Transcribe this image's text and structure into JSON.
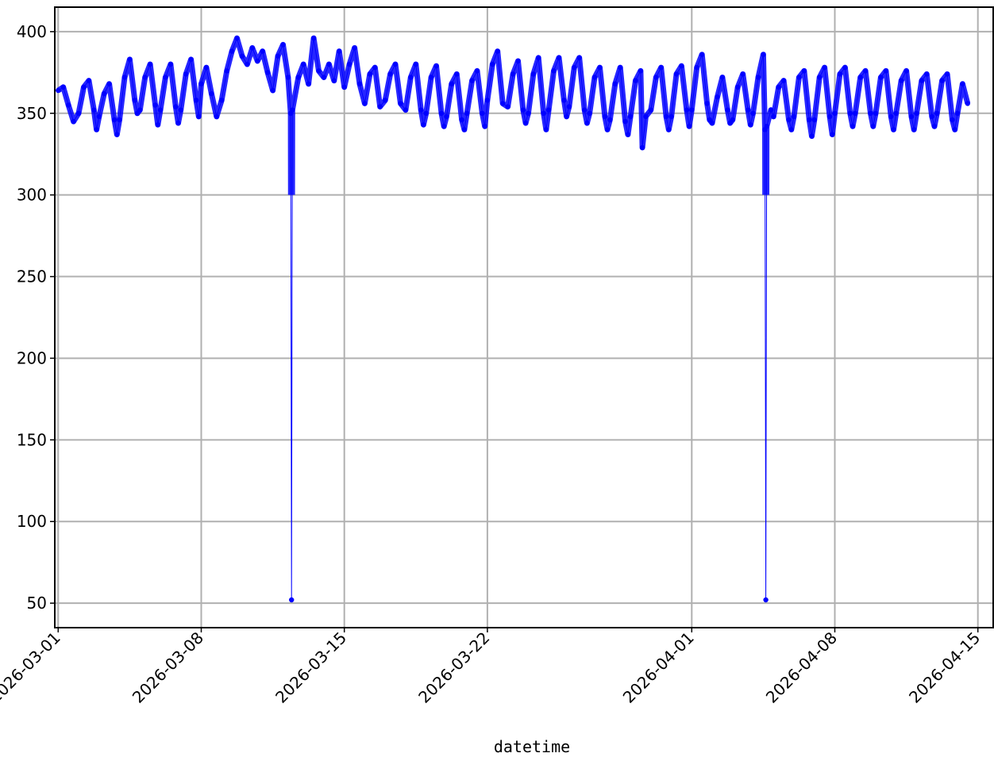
{
  "chart_data": {
    "type": "line",
    "title": "",
    "xlabel": "datetime",
    "ylabel": "",
    "x_type": "date",
    "xlim": [
      "2026-02-28T20:00",
      "2026-04-15T18:00"
    ],
    "ylim": [
      35,
      415
    ],
    "grid": true,
    "legend": "none",
    "x_ticks": [
      "2026-03-01",
      "2026-03-08",
      "2026-03-15",
      "2026-03-22",
      "2026-04-01",
      "2026-04-08",
      "2026-04-15"
    ],
    "y_ticks": [
      50,
      100,
      150,
      200,
      250,
      300,
      350,
      400
    ],
    "series": [
      {
        "color": "#0000ff",
        "marker": "dot",
        "points": [
          [
            "2026-03-01T00:00",
            364
          ],
          [
            "2026-03-01T06:00",
            366
          ],
          [
            "2026-03-01T12:00",
            355
          ],
          [
            "2026-03-01T18:00",
            345
          ],
          [
            "2026-03-02T00:00",
            350
          ],
          [
            "2026-03-02T06:00",
            366
          ],
          [
            "2026-03-02T12:00",
            370
          ],
          [
            "2026-03-02T18:00",
            352
          ],
          [
            "2026-03-02T21:00",
            340
          ],
          [
            "2026-03-03T00:00",
            348
          ],
          [
            "2026-03-03T06:00",
            362
          ],
          [
            "2026-03-03T12:00",
            368
          ],
          [
            "2026-03-03T18:00",
            346
          ],
          [
            "2026-03-03T21:00",
            337
          ],
          [
            "2026-03-04T00:00",
            346
          ],
          [
            "2026-03-04T06:00",
            372
          ],
          [
            "2026-03-04T12:00",
            383
          ],
          [
            "2026-03-04T18:00",
            358
          ],
          [
            "2026-03-04T21:00",
            350
          ],
          [
            "2026-03-05T00:00",
            352
          ],
          [
            "2026-03-05T06:00",
            372
          ],
          [
            "2026-03-05T12:00",
            380
          ],
          [
            "2026-03-05T18:00",
            355
          ],
          [
            "2026-03-05T21:00",
            343
          ],
          [
            "2026-03-06T00:00",
            352
          ],
          [
            "2026-03-06T06:00",
            372
          ],
          [
            "2026-03-06T12:00",
            380
          ],
          [
            "2026-03-06T18:00",
            354
          ],
          [
            "2026-03-06T21:00",
            344
          ],
          [
            "2026-03-07T00:00",
            352
          ],
          [
            "2026-03-07T06:00",
            374
          ],
          [
            "2026-03-07T12:00",
            383
          ],
          [
            "2026-03-07T18:00",
            358
          ],
          [
            "2026-03-07T21:00",
            348
          ],
          [
            "2026-03-08T00:00",
            368
          ],
          [
            "2026-03-08T06:00",
            378
          ],
          [
            "2026-03-08T12:00",
            362
          ],
          [
            "2026-03-08T18:00",
            348
          ],
          [
            "2026-03-09T00:00",
            358
          ],
          [
            "2026-03-09T06:00",
            376
          ],
          [
            "2026-03-09T12:00",
            388
          ],
          [
            "2026-03-09T18:00",
            396
          ],
          [
            "2026-03-10T00:00",
            385
          ],
          [
            "2026-03-10T06:00",
            380
          ],
          [
            "2026-03-10T12:00",
            390
          ],
          [
            "2026-03-10T18:00",
            382
          ],
          [
            "2026-03-11T00:00",
            388
          ],
          [
            "2026-03-11T06:00",
            375
          ],
          [
            "2026-03-11T12:00",
            364
          ],
          [
            "2026-03-11T18:00",
            385
          ],
          [
            "2026-03-12T00:00",
            392
          ],
          [
            "2026-03-12T06:00",
            372
          ],
          [
            "2026-03-12T09:00",
            350
          ],
          [
            "2026-03-12T10:00",
            52
          ],
          [
            "2026-03-12T11:00",
            352
          ],
          [
            "2026-03-12T18:00",
            372
          ],
          [
            "2026-03-13T00:00",
            380
          ],
          [
            "2026-03-13T06:00",
            368
          ],
          [
            "2026-03-13T12:00",
            396
          ],
          [
            "2026-03-13T18:00",
            376
          ],
          [
            "2026-03-14T00:00",
            372
          ],
          [
            "2026-03-14T06:00",
            380
          ],
          [
            "2026-03-14T12:00",
            370
          ],
          [
            "2026-03-14T18:00",
            388
          ],
          [
            "2026-03-15T00:00",
            366
          ],
          [
            "2026-03-15T06:00",
            380
          ],
          [
            "2026-03-15T12:00",
            390
          ],
          [
            "2026-03-15T18:00",
            368
          ],
          [
            "2026-03-16T00:00",
            356
          ],
          [
            "2026-03-16T06:00",
            374
          ],
          [
            "2026-03-16T12:00",
            378
          ],
          [
            "2026-03-16T18:00",
            354
          ],
          [
            "2026-03-17T00:00",
            358
          ],
          [
            "2026-03-17T06:00",
            374
          ],
          [
            "2026-03-17T12:00",
            380
          ],
          [
            "2026-03-17T18:00",
            356
          ],
          [
            "2026-03-18T00:00",
            352
          ],
          [
            "2026-03-18T06:00",
            372
          ],
          [
            "2026-03-18T12:00",
            380
          ],
          [
            "2026-03-18T18:00",
            352
          ],
          [
            "2026-03-18T21:00",
            343
          ],
          [
            "2026-03-19T00:00",
            350
          ],
          [
            "2026-03-19T06:00",
            372
          ],
          [
            "2026-03-19T12:00",
            379
          ],
          [
            "2026-03-19T18:00",
            350
          ],
          [
            "2026-03-19T21:00",
            342
          ],
          [
            "2026-03-20T00:00",
            348
          ],
          [
            "2026-03-20T06:00",
            368
          ],
          [
            "2026-03-20T12:00",
            374
          ],
          [
            "2026-03-20T18:00",
            346
          ],
          [
            "2026-03-20T21:00",
            340
          ],
          [
            "2026-03-21T00:00",
            350
          ],
          [
            "2026-03-21T06:00",
            370
          ],
          [
            "2026-03-21T12:00",
            376
          ],
          [
            "2026-03-21T18:00",
            350
          ],
          [
            "2026-03-21T21:00",
            342
          ],
          [
            "2026-03-22T00:00",
            358
          ],
          [
            "2026-03-22T06:00",
            380
          ],
          [
            "2026-03-22T12:00",
            388
          ],
          [
            "2026-03-22T18:00",
            356
          ],
          [
            "2026-03-23T00:00",
            354
          ],
          [
            "2026-03-23T06:00",
            374
          ],
          [
            "2026-03-23T12:00",
            382
          ],
          [
            "2026-03-23T18:00",
            352
          ],
          [
            "2026-03-23T21:00",
            344
          ],
          [
            "2026-03-24T00:00",
            350
          ],
          [
            "2026-03-24T06:00",
            374
          ],
          [
            "2026-03-24T12:00",
            384
          ],
          [
            "2026-03-24T18:00",
            350
          ],
          [
            "2026-03-24T21:00",
            340
          ],
          [
            "2026-03-25T00:00",
            352
          ],
          [
            "2026-03-25T06:00",
            376
          ],
          [
            "2026-03-25T12:00",
            384
          ],
          [
            "2026-03-25T18:00",
            358
          ],
          [
            "2026-03-25T21:00",
            348
          ],
          [
            "2026-03-26T00:00",
            354
          ],
          [
            "2026-03-26T06:00",
            378
          ],
          [
            "2026-03-26T12:00",
            384
          ],
          [
            "2026-03-26T18:00",
            352
          ],
          [
            "2026-03-26T21:00",
            344
          ],
          [
            "2026-03-27T00:00",
            350
          ],
          [
            "2026-03-27T06:00",
            372
          ],
          [
            "2026-03-27T12:00",
            378
          ],
          [
            "2026-03-27T18:00",
            348
          ],
          [
            "2026-03-27T21:00",
            340
          ],
          [
            "2026-03-28T00:00",
            346
          ],
          [
            "2026-03-28T06:00",
            368
          ],
          [
            "2026-03-28T12:00",
            378
          ],
          [
            "2026-03-28T18:00",
            345
          ],
          [
            "2026-03-28T21:00",
            337
          ],
          [
            "2026-03-29T00:00",
            348
          ],
          [
            "2026-03-29T06:00",
            370
          ],
          [
            "2026-03-29T12:00",
            376
          ],
          [
            "2026-03-29T14:00",
            329
          ],
          [
            "2026-03-29T18:00",
            348
          ],
          [
            "2026-03-30T00:00",
            352
          ],
          [
            "2026-03-30T06:00",
            372
          ],
          [
            "2026-03-30T12:00",
            378
          ],
          [
            "2026-03-30T18:00",
            348
          ],
          [
            "2026-03-30T21:00",
            340
          ],
          [
            "2026-03-31T00:00",
            348
          ],
          [
            "2026-03-31T06:00",
            374
          ],
          [
            "2026-03-31T12:00",
            379
          ],
          [
            "2026-03-31T18:00",
            352
          ],
          [
            "2026-03-31T21:00",
            342
          ],
          [
            "2026-04-01T00:00",
            352
          ],
          [
            "2026-04-01T06:00",
            378
          ],
          [
            "2026-04-01T12:00",
            386
          ],
          [
            "2026-04-01T18:00",
            356
          ],
          [
            "2026-04-01T21:00",
            346
          ],
          [
            "2026-04-02T00:00",
            344
          ],
          [
            "2026-04-02T06:00",
            360
          ],
          [
            "2026-04-02T12:00",
            372
          ],
          [
            "2026-04-02T18:00",
            352
          ],
          [
            "2026-04-02T21:00",
            344
          ],
          [
            "2026-04-03T00:00",
            346
          ],
          [
            "2026-04-03T06:00",
            366
          ],
          [
            "2026-04-03T12:00",
            374
          ],
          [
            "2026-04-03T18:00",
            352
          ],
          [
            "2026-04-03T21:00",
            343
          ],
          [
            "2026-04-04T00:00",
            350
          ],
          [
            "2026-04-04T06:00",
            372
          ],
          [
            "2026-04-04T12:00",
            386
          ],
          [
            "2026-04-04T14:00",
            340
          ],
          [
            "2026-04-04T15:00",
            52
          ],
          [
            "2026-04-04T16:00",
            342
          ],
          [
            "2026-04-04T21:00",
            352
          ],
          [
            "2026-04-05T00:00",
            348
          ],
          [
            "2026-04-05T06:00",
            366
          ],
          [
            "2026-04-05T12:00",
            370
          ],
          [
            "2026-04-05T18:00",
            346
          ],
          [
            "2026-04-05T21:00",
            340
          ],
          [
            "2026-04-06T00:00",
            348
          ],
          [
            "2026-04-06T06:00",
            372
          ],
          [
            "2026-04-06T12:00",
            376
          ],
          [
            "2026-04-06T18:00",
            346
          ],
          [
            "2026-04-06T21:00",
            336
          ],
          [
            "2026-04-07T00:00",
            346
          ],
          [
            "2026-04-07T06:00",
            372
          ],
          [
            "2026-04-07T12:00",
            378
          ],
          [
            "2026-04-07T18:00",
            348
          ],
          [
            "2026-04-07T21:00",
            337
          ],
          [
            "2026-04-08T00:00",
            350
          ],
          [
            "2026-04-08T06:00",
            374
          ],
          [
            "2026-04-08T12:00",
            378
          ],
          [
            "2026-04-08T18:00",
            350
          ],
          [
            "2026-04-08T21:00",
            342
          ],
          [
            "2026-04-09T00:00",
            350
          ],
          [
            "2026-04-09T06:00",
            372
          ],
          [
            "2026-04-09T12:00",
            376
          ],
          [
            "2026-04-09T18:00",
            350
          ],
          [
            "2026-04-09T21:00",
            342
          ],
          [
            "2026-04-10T00:00",
            350
          ],
          [
            "2026-04-10T06:00",
            372
          ],
          [
            "2026-04-10T12:00",
            376
          ],
          [
            "2026-04-10T18:00",
            348
          ],
          [
            "2026-04-10T21:00",
            340
          ],
          [
            "2026-04-11T00:00",
            350
          ],
          [
            "2026-04-11T06:00",
            370
          ],
          [
            "2026-04-11T12:00",
            376
          ],
          [
            "2026-04-11T18:00",
            348
          ],
          [
            "2026-04-11T21:00",
            340
          ],
          [
            "2026-04-12T00:00",
            350
          ],
          [
            "2026-04-12T06:00",
            370
          ],
          [
            "2026-04-12T12:00",
            374
          ],
          [
            "2026-04-12T18:00",
            348
          ],
          [
            "2026-04-12T21:00",
            342
          ],
          [
            "2026-04-13T00:00",
            350
          ],
          [
            "2026-04-13T06:00",
            370
          ],
          [
            "2026-04-13T12:00",
            374
          ],
          [
            "2026-04-13T18:00",
            346
          ],
          [
            "2026-04-13T21:00",
            340
          ],
          [
            "2026-04-14T00:00",
            350
          ],
          [
            "2026-04-14T06:00",
            368
          ],
          [
            "2026-04-14T12:00",
            356
          ]
        ]
      }
    ]
  }
}
